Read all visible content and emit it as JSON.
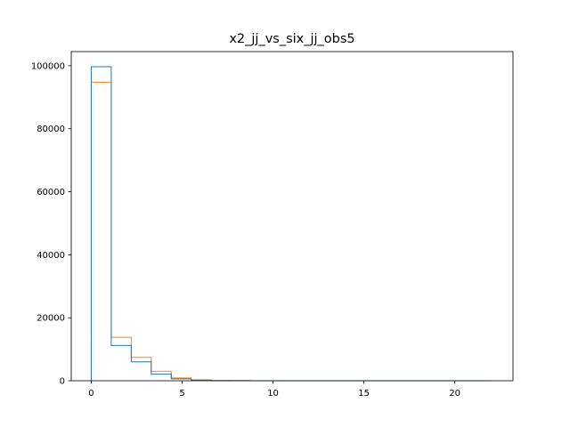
{
  "chart_data": {
    "type": "histogram",
    "title": "x2_jj_vs_six_jj_obs5",
    "xlabel": "",
    "ylabel": "",
    "xlim": [
      -1.1,
      23.2
    ],
    "ylim": [
      0,
      104500
    ],
    "x_ticks": [
      0,
      5,
      10,
      15,
      20
    ],
    "y_ticks": [
      0,
      20000,
      40000,
      60000,
      80000,
      100000
    ],
    "bin_edges": [
      0,
      1.1,
      2.2,
      3.3,
      4.4,
      5.5,
      6.6,
      7.7,
      8.8,
      9.9,
      11.0,
      12.1,
      13.2,
      14.3,
      15.4,
      16.5,
      17.6,
      18.7,
      19.8,
      20.9,
      22.0
    ],
    "series": [
      {
        "color": "#ff7f0e",
        "values": [
          94800,
          13800,
          7400,
          3000,
          900,
          300,
          80,
          30,
          10,
          5,
          3,
          2,
          1,
          1,
          1,
          0,
          0,
          0,
          0,
          0
        ]
      },
      {
        "color": "#1f77b4",
        "values": [
          99700,
          11200,
          6000,
          2100,
          600,
          200,
          50,
          20,
          8,
          4,
          2,
          1,
          1,
          1,
          0,
          0,
          0,
          0,
          0,
          0
        ]
      }
    ],
    "grid": false,
    "legend": "none"
  }
}
